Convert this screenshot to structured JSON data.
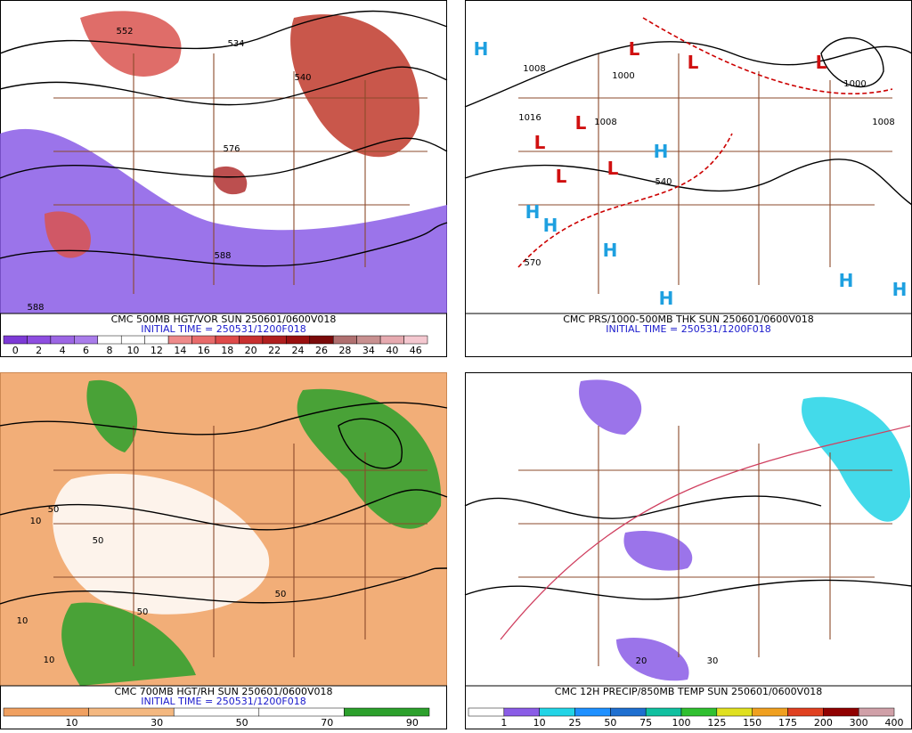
{
  "panels": [
    {
      "title": "CMC 500MB HGT/VOR SUN 250601/0600V018",
      "initial_time": "INITIAL TIME = 250531/1200F018",
      "colorbar_labels": [
        "0",
        "2",
        "4",
        "6",
        "8",
        "10",
        "12",
        "14",
        "16",
        "18",
        "20",
        "22",
        "24",
        "26",
        "28",
        "34",
        "40",
        "46"
      ],
      "map_labels": [
        "552",
        "534",
        "576",
        "588",
        "588",
        "540"
      ]
    },
    {
      "title": "CMC PRS/1000-500MB THK SUN 250601/0600V018",
      "initial_time": "INITIAL TIME = 250531/1200F018",
      "colorbar_labels": [],
      "map_labels": [
        "H",
        "L",
        "L",
        "L",
        "L",
        "L",
        "L",
        "L",
        "H",
        "H",
        "H",
        "H",
        "H",
        "H",
        "H",
        "1008",
        "1000",
        "1008",
        "1016",
        "540",
        "570",
        "1000",
        "1008"
      ]
    },
    {
      "title": "CMC 700MB HGT/RH SUN 250601/0600V018",
      "initial_time": "INITIAL TIME = 250531/1200F018",
      "colorbar_labels": [
        "10",
        "30",
        "50",
        "70",
        "90"
      ],
      "map_labels": [
        "10",
        "50",
        "50",
        "10",
        "10",
        "50",
        "50"
      ]
    },
    {
      "title": "CMC 12H PRECIP/850MB TEMP SUN 250601/0600V018",
      "initial_time": null,
      "colorbar_labels": [
        "1",
        "10",
        "25",
        "50",
        "75",
        "100",
        "125",
        "150",
        "175",
        "200",
        "300",
        "400"
      ],
      "map_labels": [
        "20",
        "30"
      ]
    }
  ]
}
